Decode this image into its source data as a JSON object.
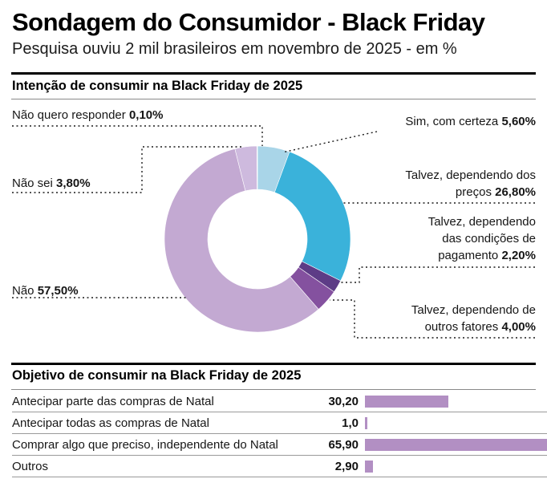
{
  "header": {
    "title": "Sondagem do Consumidor - Black Friday",
    "subtitle": "Pesquisa ouviu 2 mil brasileiros em novembro de 2025 - em %"
  },
  "chart_data": [
    {
      "type": "pie",
      "variant": "donut",
      "title": "Intenção de consumir na Black Friday de 2025",
      "unit": "%",
      "start_angle_deg": 0,
      "direction": "clockwise",
      "slices": [
        {
          "label": "Sim, com certeza",
          "value": 5.6,
          "display": "5,60%",
          "color": "#a9d5e8"
        },
        {
          "label": "Talvez, dependendo dos preços",
          "value": 26.8,
          "display": "26,80%",
          "color": "#3ab2da"
        },
        {
          "label": "Talvez, dependendo das condições de pagamento",
          "value": 2.2,
          "display": "2,20%",
          "color": "#5d3c86"
        },
        {
          "label": "Talvez, dependendo de outros fatores",
          "value": 4.0,
          "display": "4,00%",
          "color": "#84519f"
        },
        {
          "label": "Não",
          "value": 57.5,
          "display": "57,50%",
          "color": "#c3a9d2"
        },
        {
          "label": "Não sei",
          "value": 3.8,
          "display": "3,80%",
          "color": "#cebade"
        },
        {
          "label": "Não quero responder",
          "value": 0.1,
          "display": "0,10%",
          "color": "#d8e8f2"
        }
      ]
    },
    {
      "type": "bar",
      "orientation": "horizontal",
      "title": "Objetivo de consumir na Black Friday de 2025",
      "unit": "%",
      "categories": [
        "Antecipar parte das compras de Natal",
        "Antecipar todas as compras de Natal",
        "Comprar algo que preciso, independente do Natal",
        "Outros"
      ],
      "values": [
        30.2,
        1.0,
        65.9,
        2.9
      ],
      "displays": [
        "30,20",
        "1,0",
        "65,90",
        "2,90"
      ],
      "bar_color": "#b28fc3",
      "xlim": [
        0,
        65.9
      ],
      "grid": false,
      "legend": false
    }
  ]
}
